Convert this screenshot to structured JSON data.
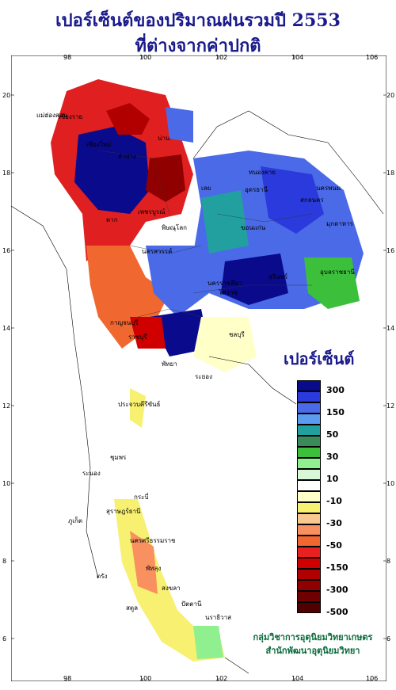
{
  "title": {
    "line1": "เปอร์เซ็นต์ของปริมาณฝนรวมปี 2553",
    "line2": "ที่ต่างจากค่าปกติ"
  },
  "axes": {
    "x_ticks": [
      "98",
      "100",
      "102",
      "104",
      "106"
    ],
    "y_ticks": [
      "20",
      "18",
      "16",
      "14",
      "12",
      "10",
      "8",
      "6"
    ]
  },
  "legend": {
    "title": "เปอร์เซ็นต์",
    "items": [
      {
        "label": "300",
        "color": "#0a0a8c"
      },
      {
        "label": "",
        "color": "#2a3adc"
      },
      {
        "label": "150",
        "color": "#4a6ae8"
      },
      {
        "label": "",
        "color": "#5c9cf0"
      },
      {
        "label": "50",
        "color": "#22a0a0"
      },
      {
        "label": "",
        "color": "#3a8a5a"
      },
      {
        "label": "30",
        "color": "#3cc03c"
      },
      {
        "label": "",
        "color": "#90f090"
      },
      {
        "label": "10",
        "color": "#d8f8d8"
      },
      {
        "label": "",
        "color": "#ffffff"
      },
      {
        "label": "-10",
        "color": "#ffffc8"
      },
      {
        "label": "",
        "color": "#f8f070"
      },
      {
        "label": "-30",
        "color": "#f8c890"
      },
      {
        "label": "",
        "color": "#f89060"
      },
      {
        "label": "-50",
        "color": "#f06830"
      },
      {
        "label": "",
        "color": "#e82020"
      },
      {
        "label": "-150",
        "color": "#d00000"
      },
      {
        "label": "",
        "color": "#b00000"
      },
      {
        "label": "-300",
        "color": "#900000"
      },
      {
        "label": "",
        "color": "#700000"
      },
      {
        "label": "-500",
        "color": "#500000"
      }
    ]
  },
  "places": [
    "เชียงราย",
    "น่าน",
    "แม่ฮ่องสอน",
    "เชียงใหม่",
    "ลำปาง",
    "เลย",
    "อุดรธานี",
    "หนองคาย",
    "นครพนม",
    "สกลนคร",
    "มุกดาหาร",
    "ขอนแก่น",
    "พิษณุโลก",
    "ตาก",
    "เพชรบูรณ์",
    "นครสวรรค์",
    "อุบลราชธานี",
    "นครราชสีมา",
    "สุรินทร์",
    "โคราช",
    "กาญจนบุรี",
    "ราชบุรี",
    "ชลบุรี",
    "พัทยา",
    "ระยอง",
    "ประจวบคีรีขันธ์",
    "ชุมพร",
    "ระนอง",
    "สุราษฎร์ธานี",
    "กระบี่",
    "ภูเก็ต",
    "นครศรีธรรมราช",
    "พัทลุง",
    "สงขลา",
    "ปัตตานี",
    "นราธิวาส",
    "ตรัง",
    "สตูล"
  ],
  "credit": {
    "line1": "กลุ่มวิชาการอุตุนิยมวิทยาเกษตร",
    "line2": "สำนักพัฒนาอุตุนิยมวิทยา"
  }
}
